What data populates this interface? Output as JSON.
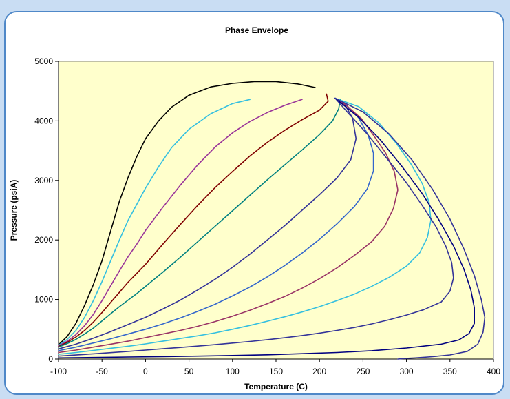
{
  "chart_data": {
    "type": "line",
    "title": "Phase Envelope",
    "xlabel": "Temperature (C)",
    "ylabel": "Pressure (psiA)",
    "xlim": [
      -100,
      400
    ],
    "ylim": [
      0,
      5000
    ],
    "x_ticks": [
      "-100",
      "-50",
      "0",
      "50",
      "100",
      "150",
      "200",
      "250",
      "300",
      "350",
      "400"
    ],
    "y_ticks": [
      "0",
      "1000",
      "2000",
      "3000",
      "4000",
      "5000"
    ],
    "grid": false,
    "legend": "none",
    "plot_background": "#ffffcc",
    "series": [
      {
        "color": "#000000",
        "points": [
          [
            -100,
            240
          ],
          [
            -90,
            380
          ],
          [
            -80,
            600
          ],
          [
            -70,
            900
          ],
          [
            -60,
            1250
          ],
          [
            -50,
            1650
          ],
          [
            -40,
            2150
          ],
          [
            -30,
            2650
          ],
          [
            -20,
            3050
          ],
          [
            -10,
            3400
          ],
          [
            0,
            3700
          ],
          [
            15,
            4000
          ],
          [
            30,
            4230
          ],
          [
            50,
            4430
          ],
          [
            75,
            4570
          ],
          [
            100,
            4630
          ],
          [
            125,
            4660
          ],
          [
            150,
            4660
          ],
          [
            175,
            4620
          ],
          [
            195,
            4560
          ]
        ]
      },
      {
        "color": "#33bfe0",
        "points": [
          [
            -100,
            230
          ],
          [
            -90,
            330
          ],
          [
            -80,
            480
          ],
          [
            -70,
            700
          ],
          [
            -60,
            980
          ],
          [
            -50,
            1300
          ],
          [
            -40,
            1650
          ],
          [
            -30,
            2000
          ],
          [
            -20,
            2330
          ],
          [
            -10,
            2600
          ],
          [
            0,
            2870
          ],
          [
            15,
            3230
          ],
          [
            30,
            3550
          ],
          [
            50,
            3860
          ],
          [
            75,
            4120
          ],
          [
            100,
            4290
          ],
          [
            120,
            4360
          ]
        ]
      },
      {
        "color": "#993399",
        "points": [
          [
            -100,
            220
          ],
          [
            -90,
            300
          ],
          [
            -80,
            410
          ],
          [
            -70,
            560
          ],
          [
            -60,
            750
          ],
          [
            -50,
            980
          ],
          [
            -40,
            1230
          ],
          [
            -30,
            1480
          ],
          [
            -20,
            1720
          ],
          [
            -10,
            1930
          ],
          [
            0,
            2160
          ],
          [
            20,
            2550
          ],
          [
            40,
            2920
          ],
          [
            60,
            3260
          ],
          [
            80,
            3560
          ],
          [
            100,
            3800
          ],
          [
            120,
            3990
          ],
          [
            140,
            4140
          ],
          [
            160,
            4260
          ],
          [
            180,
            4360
          ]
        ]
      },
      {
        "color": "#800000",
        "points": [
          [
            -100,
            210
          ],
          [
            -90,
            280
          ],
          [
            -80,
            370
          ],
          [
            -70,
            480
          ],
          [
            -60,
            620
          ],
          [
            -50,
            780
          ],
          [
            -40,
            950
          ],
          [
            -30,
            1120
          ],
          [
            -20,
            1290
          ],
          [
            -10,
            1440
          ],
          [
            0,
            1590
          ],
          [
            20,
            1930
          ],
          [
            40,
            2260
          ],
          [
            60,
            2580
          ],
          [
            80,
            2880
          ],
          [
            100,
            3150
          ],
          [
            120,
            3410
          ],
          [
            140,
            3640
          ],
          [
            160,
            3840
          ],
          [
            180,
            4020
          ],
          [
            200,
            4180
          ],
          [
            210,
            4330
          ],
          [
            208,
            4450
          ]
        ]
      },
      {
        "color": "#008080",
        "points": [
          [
            -100,
            200
          ],
          [
            -90,
            260
          ],
          [
            -80,
            330
          ],
          [
            -70,
            420
          ],
          [
            -60,
            520
          ],
          [
            -50,
            640
          ],
          [
            -40,
            760
          ],
          [
            -30,
            880
          ],
          [
            -20,
            990
          ],
          [
            -10,
            1100
          ],
          [
            0,
            1220
          ],
          [
            20,
            1460
          ],
          [
            40,
            1710
          ],
          [
            60,
            1970
          ],
          [
            80,
            2230
          ],
          [
            100,
            2490
          ],
          [
            120,
            2750
          ],
          [
            140,
            3010
          ],
          [
            160,
            3260
          ],
          [
            180,
            3510
          ],
          [
            200,
            3770
          ],
          [
            215,
            4000
          ],
          [
            222,
            4200
          ],
          [
            224,
            4360
          ]
        ]
      },
      {
        "color": "#333399",
        "points": [
          [
            -100,
            170
          ],
          [
            -80,
            250
          ],
          [
            -60,
            350
          ],
          [
            -40,
            460
          ],
          [
            -20,
            580
          ],
          [
            0,
            700
          ],
          [
            20,
            840
          ],
          [
            40,
            990
          ],
          [
            60,
            1160
          ],
          [
            80,
            1340
          ],
          [
            100,
            1540
          ],
          [
            120,
            1760
          ],
          [
            140,
            2000
          ],
          [
            160,
            2240
          ],
          [
            180,
            2500
          ],
          [
            200,
            2760
          ],
          [
            220,
            3040
          ],
          [
            236,
            3350
          ],
          [
            242,
            3700
          ],
          [
            238,
            4050
          ],
          [
            230,
            4250
          ],
          [
            218,
            4380
          ]
        ]
      },
      {
        "color": "#3366cc",
        "points": [
          [
            -100,
            140
          ],
          [
            -80,
            200
          ],
          [
            -60,
            270
          ],
          [
            -40,
            340
          ],
          [
            -20,
            420
          ],
          [
            0,
            500
          ],
          [
            20,
            590
          ],
          [
            40,
            690
          ],
          [
            60,
            800
          ],
          [
            80,
            920
          ],
          [
            100,
            1060
          ],
          [
            120,
            1210
          ],
          [
            140,
            1380
          ],
          [
            160,
            1570
          ],
          [
            180,
            1780
          ],
          [
            200,
            2010
          ],
          [
            220,
            2270
          ],
          [
            240,
            2560
          ],
          [
            255,
            2860
          ],
          [
            262,
            3160
          ],
          [
            262,
            3460
          ],
          [
            256,
            3760
          ],
          [
            245,
            4050
          ],
          [
            230,
            4280
          ],
          [
            218,
            4380
          ]
        ]
      },
      {
        "color": "#993366",
        "points": [
          [
            -100,
            110
          ],
          [
            -80,
            150
          ],
          [
            -60,
            200
          ],
          [
            -40,
            250
          ],
          [
            -20,
            300
          ],
          [
            0,
            360
          ],
          [
            20,
            420
          ],
          [
            40,
            480
          ],
          [
            60,
            550
          ],
          [
            80,
            630
          ],
          [
            100,
            720
          ],
          [
            120,
            820
          ],
          [
            140,
            930
          ],
          [
            160,
            1050
          ],
          [
            180,
            1190
          ],
          [
            200,
            1350
          ],
          [
            220,
            1530
          ],
          [
            240,
            1740
          ],
          [
            260,
            1970
          ],
          [
            275,
            2230
          ],
          [
            285,
            2530
          ],
          [
            290,
            2840
          ],
          [
            286,
            3150
          ],
          [
            276,
            3460
          ],
          [
            262,
            3760
          ],
          [
            248,
            4040
          ],
          [
            230,
            4270
          ],
          [
            218,
            4380
          ]
        ]
      },
      {
        "color": "#33bfe0",
        "points": [
          [
            -100,
            80
          ],
          [
            -80,
            110
          ],
          [
            -60,
            145
          ],
          [
            -40,
            180
          ],
          [
            -20,
            215
          ],
          [
            0,
            255
          ],
          [
            20,
            300
          ],
          [
            40,
            345
          ],
          [
            60,
            390
          ],
          [
            80,
            440
          ],
          [
            100,
            500
          ],
          [
            120,
            565
          ],
          [
            140,
            635
          ],
          [
            160,
            710
          ],
          [
            180,
            790
          ],
          [
            200,
            880
          ],
          [
            220,
            980
          ],
          [
            240,
            1090
          ],
          [
            260,
            1220
          ],
          [
            280,
            1370
          ],
          [
            300,
            1560
          ],
          [
            315,
            1780
          ],
          [
            324,
            2040
          ],
          [
            328,
            2330
          ],
          [
            326,
            2630
          ],
          [
            318,
            2950
          ],
          [
            305,
            3280
          ],
          [
            288,
            3630
          ],
          [
            268,
            3970
          ],
          [
            245,
            4240
          ],
          [
            218,
            4380
          ]
        ]
      },
      {
        "color": "#333399",
        "points": [
          [
            -100,
            50
          ],
          [
            -80,
            68
          ],
          [
            -60,
            88
          ],
          [
            -40,
            108
          ],
          [
            -20,
            128
          ],
          [
            0,
            150
          ],
          [
            20,
            172
          ],
          [
            40,
            195
          ],
          [
            60,
            218
          ],
          [
            80,
            242
          ],
          [
            100,
            268
          ],
          [
            120,
            295
          ],
          [
            140,
            325
          ],
          [
            160,
            358
          ],
          [
            180,
            395
          ],
          [
            200,
            435
          ],
          [
            220,
            480
          ],
          [
            240,
            530
          ],
          [
            260,
            590
          ],
          [
            280,
            660
          ],
          [
            300,
            740
          ],
          [
            320,
            830
          ],
          [
            340,
            960
          ],
          [
            350,
            1140
          ],
          [
            354,
            1360
          ],
          [
            352,
            1620
          ],
          [
            345,
            1900
          ],
          [
            334,
            2220
          ],
          [
            318,
            2580
          ],
          [
            300,
            2960
          ],
          [
            278,
            3360
          ],
          [
            256,
            3760
          ],
          [
            235,
            4100
          ],
          [
            218,
            4380
          ]
        ]
      },
      {
        "color": "#000080",
        "points": [
          [
            -100,
            20
          ],
          [
            -60,
            27
          ],
          [
            -20,
            35
          ],
          [
            20,
            42
          ],
          [
            60,
            50
          ],
          [
            100,
            60
          ],
          [
            140,
            72
          ],
          [
            180,
            90
          ],
          [
            220,
            110
          ],
          [
            260,
            140
          ],
          [
            300,
            185
          ],
          [
            340,
            250
          ],
          [
            360,
            320
          ],
          [
            372,
            430
          ],
          [
            378,
            600
          ],
          [
            378,
            860
          ],
          [
            374,
            1160
          ],
          [
            366,
            1510
          ],
          [
            354,
            1900
          ],
          [
            338,
            2320
          ],
          [
            318,
            2780
          ],
          [
            295,
            3230
          ],
          [
            270,
            3680
          ],
          [
            245,
            4060
          ],
          [
            218,
            4380
          ]
        ]
      },
      {
        "color": "#333399",
        "points": [
          [
            290,
            0
          ],
          [
            298,
            10
          ],
          [
            310,
            20
          ],
          [
            330,
            40
          ],
          [
            350,
            70
          ],
          [
            370,
            130
          ],
          [
            382,
            250
          ],
          [
            388,
            450
          ],
          [
            390,
            700
          ],
          [
            386,
            1000
          ],
          [
            378,
            1400
          ],
          [
            366,
            1850
          ],
          [
            350,
            2350
          ],
          [
            330,
            2850
          ],
          [
            306,
            3350
          ],
          [
            280,
            3780
          ],
          [
            250,
            4150
          ],
          [
            218,
            4380
          ]
        ]
      }
    ]
  }
}
